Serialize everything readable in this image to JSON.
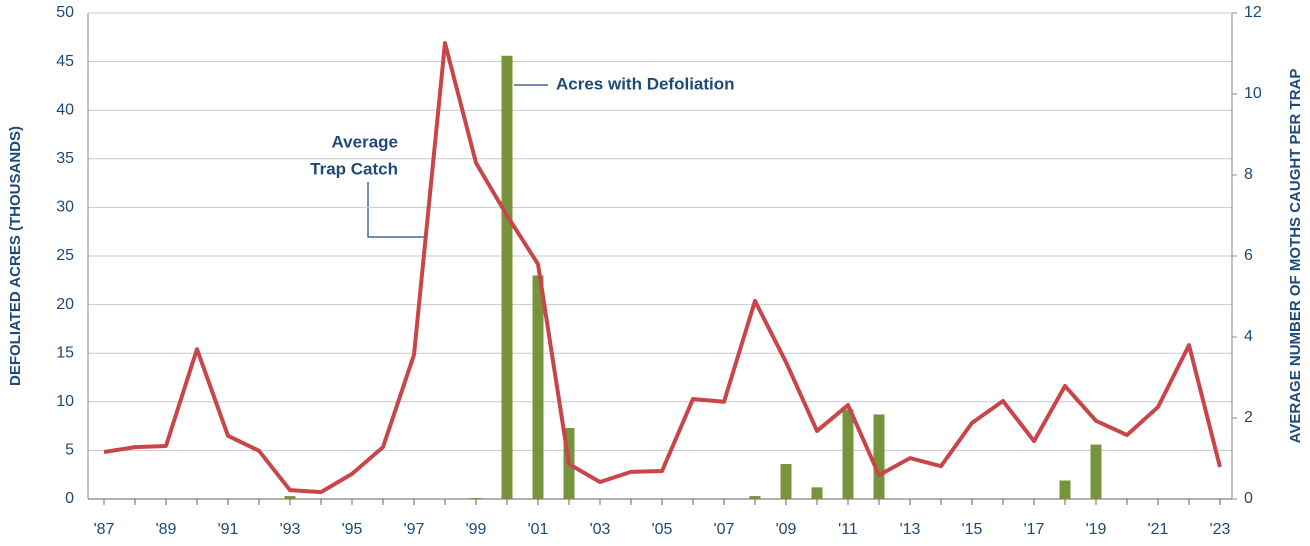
{
  "chart_data": {
    "type": "bar_line",
    "y_label": "DEFOLIATED ACRES (THOUSANDS)",
    "y2_label": "AVERAGE NUMBER OF MOTHS CAUGHT PER TRAP",
    "categories": [
      "'87",
      null,
      "'89",
      null,
      "'91",
      null,
      "'93",
      null,
      "'95",
      null,
      "'97",
      null,
      "'99",
      null,
      "'01",
      null,
      "'03",
      null,
      "'05",
      null,
      "'07",
      null,
      "'09",
      null,
      "'11",
      null,
      "'13",
      null,
      "'15",
      null,
      "'17",
      null,
      "'19",
      null,
      "'21",
      null,
      "'23"
    ],
    "series": [
      {
        "name": "Acres with Defoliation",
        "type": "bar",
        "color": "#77933c",
        "values": [
          0,
          0,
          0,
          0,
          0,
          0,
          0.3,
          0,
          0,
          0,
          0,
          0.05,
          0.1,
          45.6,
          23,
          7.3,
          0,
          0,
          0,
          0,
          0,
          0.3,
          3.6,
          1.2,
          9.2,
          8.7,
          0.05,
          0,
          0,
          0,
          0,
          1.9,
          5.6,
          0,
          0,
          0,
          0
        ]
      },
      {
        "name": "Average Trap Catch",
        "type": "line",
        "axis": "y2",
        "color": "#c8464a",
        "values": [
          1.16,
          1.28,
          1.31,
          3.7,
          1.56,
          1.19,
          0.22,
          0.17,
          0.62,
          1.28,
          3.56,
          11.26,
          8.3,
          7.0,
          5.8,
          0.86,
          0.42,
          0.67,
          0.69,
          2.47,
          2.4,
          4.89,
          3.38,
          1.68,
          2.32,
          0.59,
          1.01,
          0.81,
          1.88,
          2.42,
          1.43,
          2.79,
          1.93,
          1.58,
          2.27,
          3.8,
          0.79
        ]
      }
    ],
    "annotations": [
      "Acres with Defoliation",
      "Average",
      "Trap Catch"
    ],
    "ylim": [
      0,
      50
    ],
    "yticks": [
      0,
      5,
      10,
      15,
      20,
      25,
      30,
      35,
      40,
      45,
      50
    ],
    "y2lim": [
      0,
      12
    ],
    "y2ticks": [
      0,
      2,
      4,
      6,
      8,
      10,
      12
    ],
    "grid": true
  }
}
